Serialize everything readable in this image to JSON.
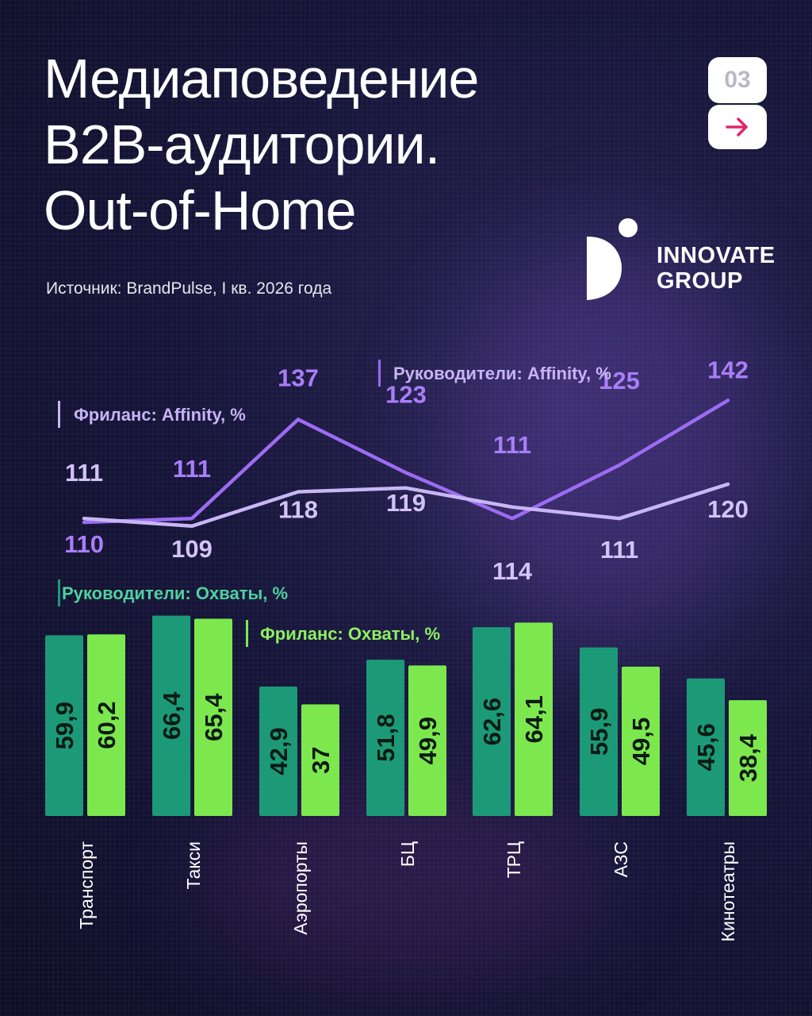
{
  "header": {
    "title_lines": [
      "Медиаповедение",
      "B2B-аудитории.",
      "Out-of-Home"
    ],
    "source": "Источник: BrandPulse, I кв. 2026 года",
    "page_number": "03",
    "next_icon": "arrow-right-icon",
    "logo": {
      "line1": "INNOVATE",
      "line2": "GROUP"
    }
  },
  "colors": {
    "executives_affinity": "#9c6cf2",
    "freelance_affinity": "#c9b6f5",
    "executives_reach": "#1c9a78",
    "freelance_reach": "#7de84e",
    "legend_affinity_text": "#c7b3f5",
    "legend_reach_text": "#4fd0a0",
    "legend_reach_freelance_text": "#8ef060"
  },
  "chart_data": [
    {
      "type": "line",
      "categories": [
        "Транспорт",
        "Такси",
        "Аэропорты",
        "БЦ",
        "ТРЦ",
        "АЗС",
        "Кинотеатры"
      ],
      "series": [
        {
          "name": "Руководители: Affinity, %",
          "values": [
            110,
            111,
            137,
            123,
            111,
            125,
            142
          ]
        },
        {
          "name": "Фриланс: Affinity, %",
          "values": [
            111,
            109,
            118,
            119,
            114,
            111,
            120
          ]
        }
      ]
    },
    {
      "type": "bar",
      "categories": [
        "Транспорт",
        "Такси",
        "Аэропорты",
        "БЦ",
        "ТРЦ",
        "АЗС",
        "Кинотеатры"
      ],
      "series": [
        {
          "name": "Руководители: Охваты, %",
          "values": [
            59.9,
            66.4,
            42.9,
            51.8,
            62.6,
            55.9,
            45.6
          ],
          "labels": [
            "59,9",
            "66,4",
            "42,9",
            "51,8",
            "62,6",
            "55,9",
            "45,6"
          ]
        },
        {
          "name": "Фриланс: Охваты, %",
          "values": [
            60.2,
            65.4,
            37,
            49.9,
            64.1,
            49.5,
            38.4
          ],
          "labels": [
            "60,2",
            "65,4",
            "37",
            "49,9",
            "64,1",
            "49,5",
            "38,4"
          ]
        }
      ]
    }
  ]
}
